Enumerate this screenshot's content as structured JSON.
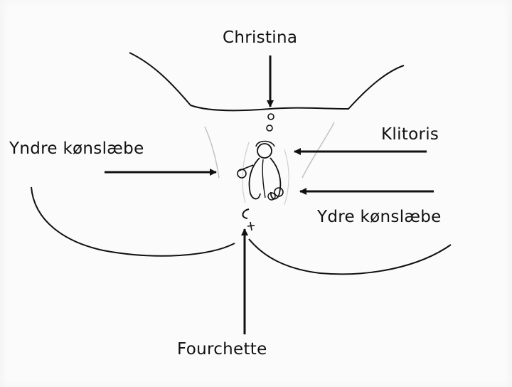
{
  "labels": {
    "top": "Christina",
    "right_upper": "Klitoris",
    "left": "Yndre kønslæbe",
    "right_lower": "Ydre kønslæbe",
    "bottom": "Fourchette"
  },
  "colors": {
    "ink": "#111111",
    "background": "#fbfbfb",
    "faint_line": "#bdbdbd"
  }
}
